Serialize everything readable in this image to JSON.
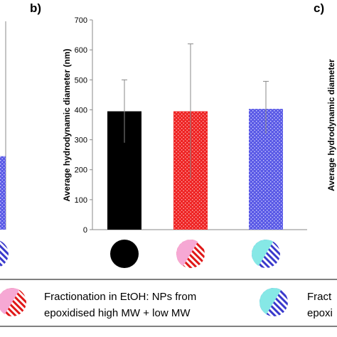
{
  "panels": {
    "left_label": "",
    "middle_label": "b)",
    "right_label": "c)"
  },
  "right_axis_title": "Average hydrodynamic diameter",
  "chart_data": {
    "type": "bar",
    "title": "",
    "xlabel": "",
    "ylabel": "Average hydrodynamic diameter (nm)",
    "ylim": [
      0,
      700
    ],
    "yticks": [
      0,
      100,
      200,
      300,
      400,
      500,
      600,
      700
    ],
    "grid": false,
    "legend": "bottom",
    "categories": [
      "",
      "",
      ""
    ],
    "values": [
      395,
      395,
      403
    ],
    "error_upper": [
      500,
      620,
      495
    ],
    "error_lower": [
      290,
      170,
      320
    ],
    "bar_colors": [
      "#000000",
      "#ee2424",
      "#5a5ae6"
    ],
    "bar_patterns": [
      "solid",
      "checker",
      "checker"
    ]
  },
  "partial_left_bar_value": 245,
  "legend": {
    "items": [
      {
        "line1": "Fractionation in EtOH: NPs from",
        "line2": "epoxidised high MW + low MW"
      },
      {
        "line1": "Fract",
        "line2": "epoxi"
      }
    ]
  },
  "colors": {
    "black": "#000000",
    "red": "#ee2424",
    "blue": "#5a5ae6",
    "pink": "#f6a8d4",
    "cyan": "#86e8e6",
    "gray_axis": "#888888"
  }
}
